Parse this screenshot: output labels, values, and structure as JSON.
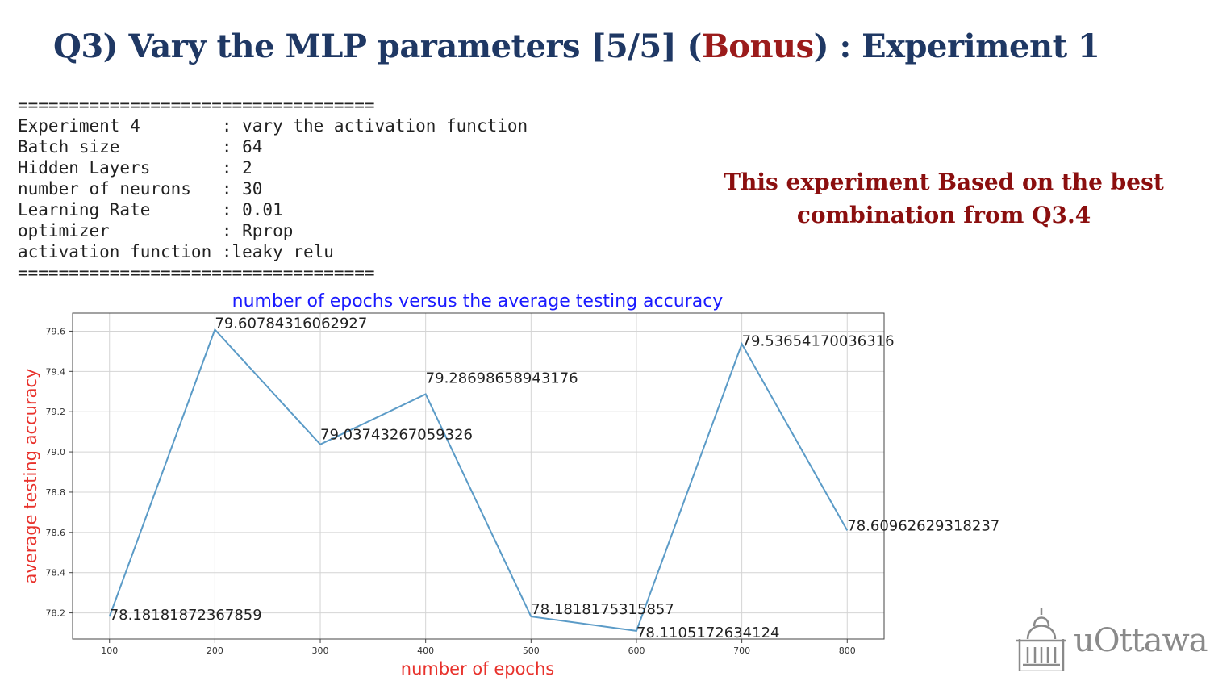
{
  "slide": {
    "title_prefix": "Q3) Vary the MLP parameters [5/5]  (",
    "title_bonus": "Bonus",
    "title_suffix": ") : Experiment 1",
    "note_line1": "This experiment Based on the best",
    "note_line2": "combination from Q3.4",
    "logo_text": "uOttawa"
  },
  "console": {
    "separator": "===================================",
    "lines": [
      "Experiment 4        : vary the activation function",
      "Batch size          : 64",
      "Hidden Layers       : 2",
      "number of neurons   : 30",
      "Learning Rate       : 0.01",
      "optimizer           : Rprop",
      "activation function :leaky_relu"
    ]
  },
  "colors": {
    "title": "#1f3864",
    "bonus": "#9b1b1b",
    "note": "#8b0f0f",
    "chart_title": "#1a1aff",
    "axis_label": "#e8322c",
    "line": "#5b9bc7"
  },
  "chart_data": {
    "type": "line",
    "title": "number of epochs versus the average testing accuracy",
    "xlabel": "number of epochs",
    "ylabel": "average testing accuracy",
    "x": [
      100,
      200,
      300,
      400,
      500,
      600,
      700,
      800
    ],
    "series": [
      {
        "values": [
          78.18181872367859,
          79.60784316062927,
          79.03743267059326,
          79.28698658943176,
          78.1818175315857,
          78.1105172634124,
          79.53654170036316,
          78.60962629318237
        ]
      }
    ],
    "data_labels": [
      "78.18181872367859",
      "79.60784316062927",
      "79.03743267059326",
      "79.28698658943176",
      "78.1818175315857",
      "78.1105172634124",
      "79.53654170036316",
      "78.60962629318237"
    ],
    "x_ticks": [
      "100",
      "200",
      "300",
      "400",
      "500",
      "600",
      "700",
      "800"
    ],
    "y_ticks": [
      "78.2",
      "78.4",
      "78.6",
      "78.8",
      "79.0",
      "79.2",
      "79.4",
      "79.6"
    ],
    "xlim": [
      65,
      835
    ],
    "ylim": [
      78.07,
      79.69
    ],
    "grid": true
  }
}
